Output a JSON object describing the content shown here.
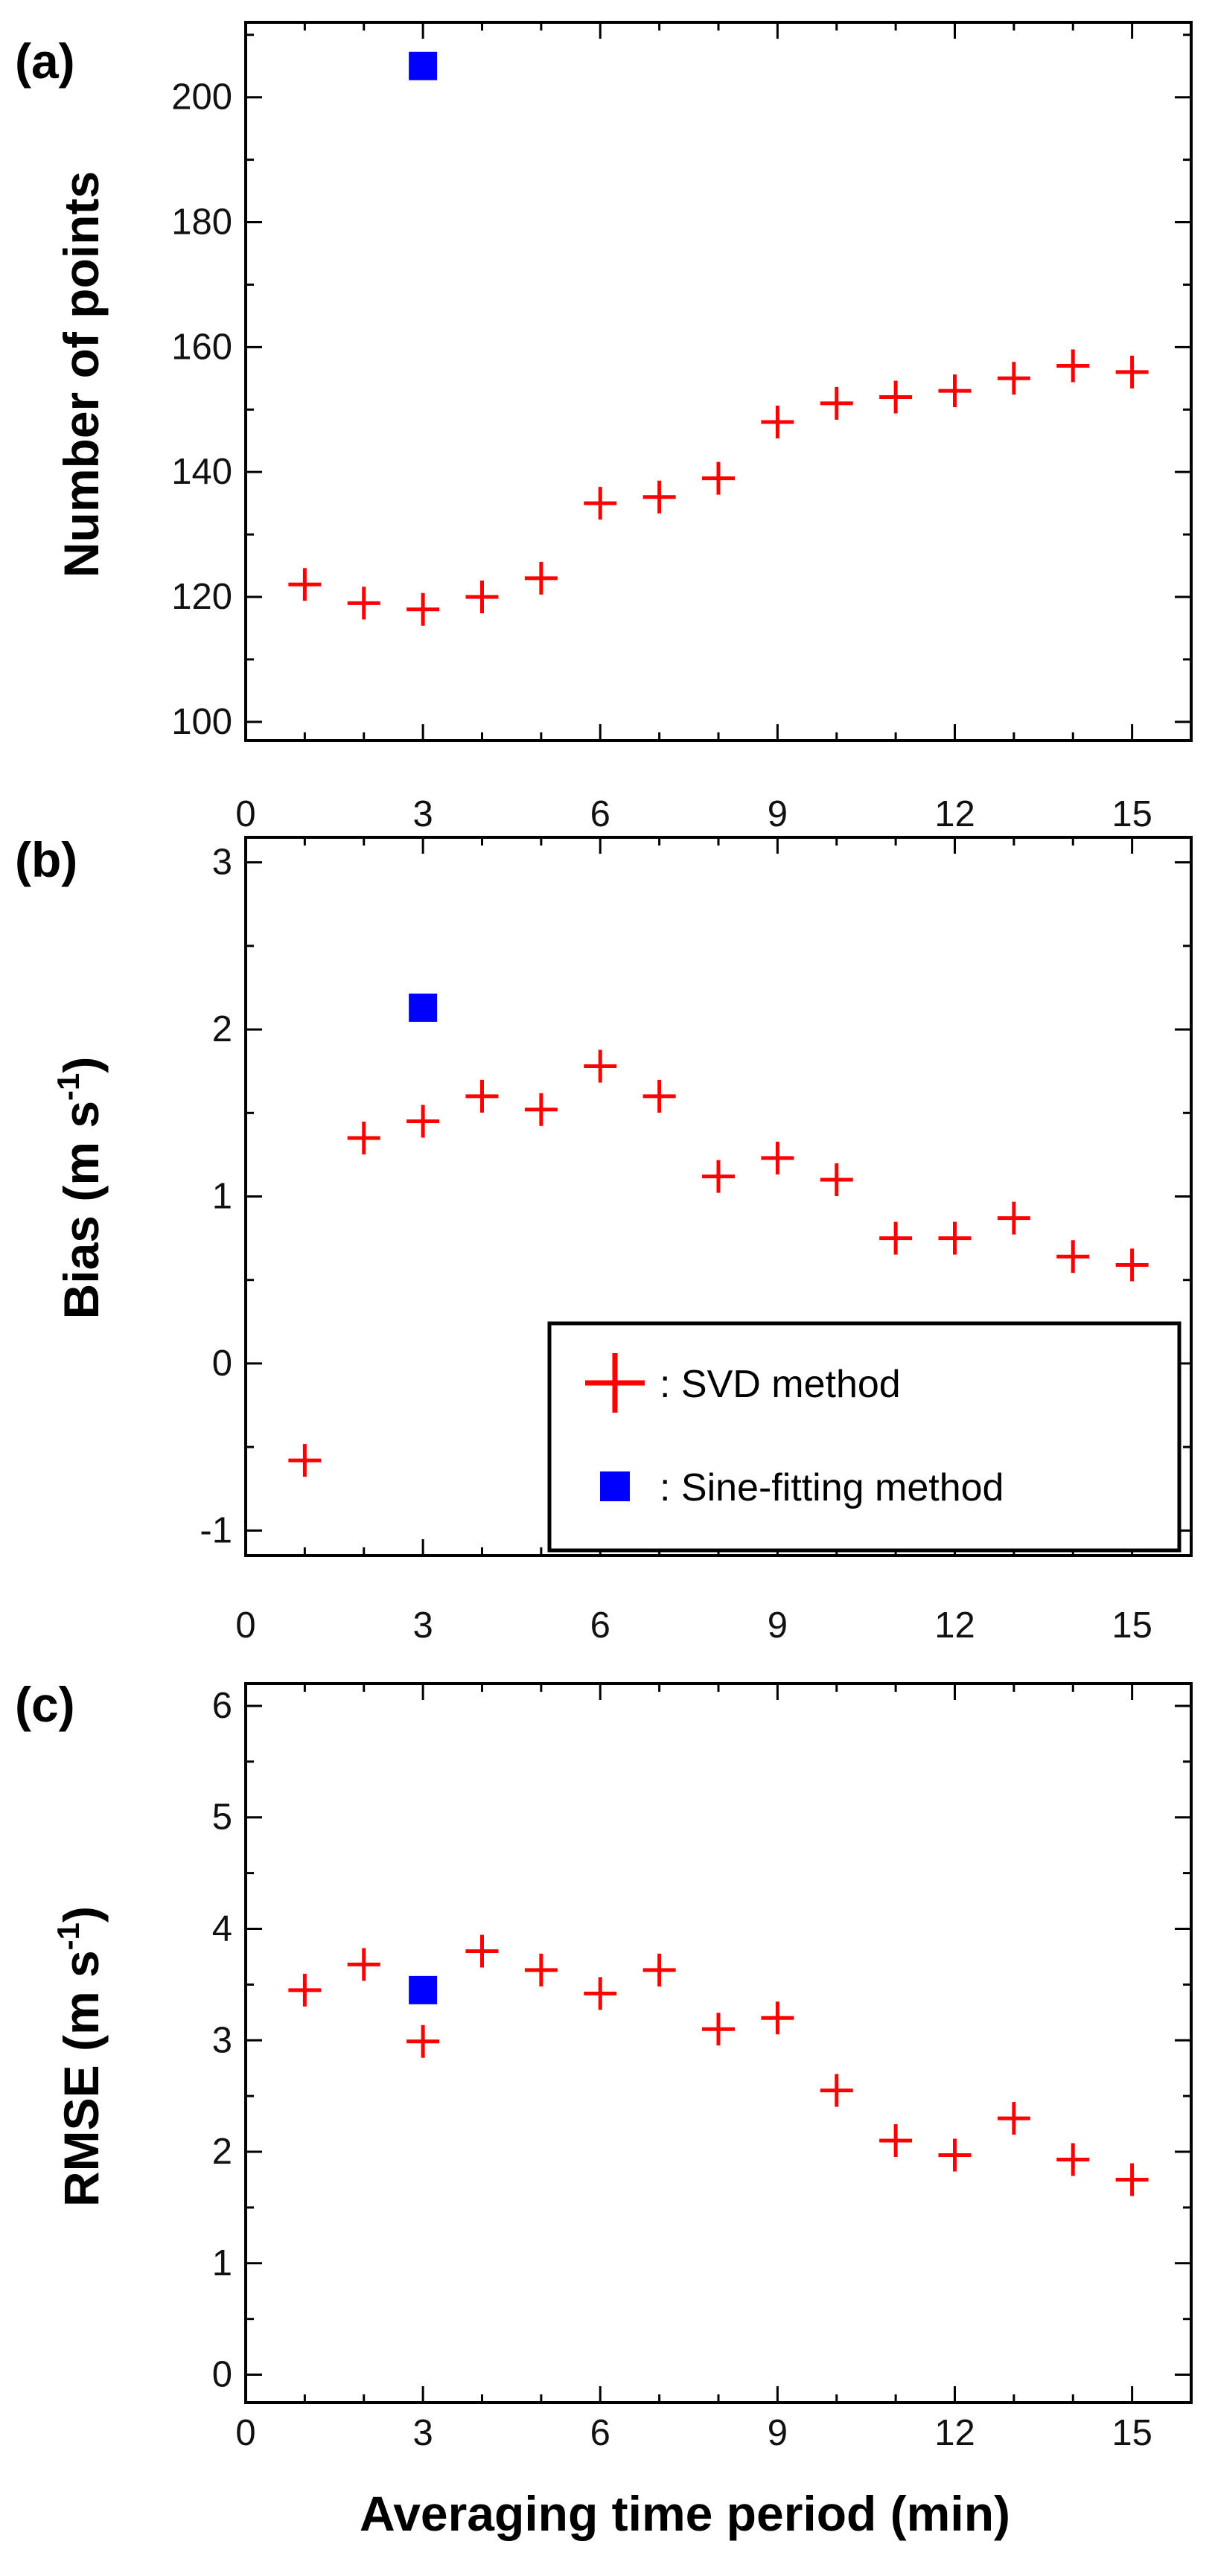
{
  "chart_data": [
    {
      "type": "scatter",
      "panel_label": "(a)",
      "ylabel": "Number of points",
      "xlim": [
        0,
        16
      ],
      "ylim": [
        97,
        212
      ],
      "x_ticks": [
        0,
        3,
        6,
        9,
        12,
        15
      ],
      "x_tick_labels": [
        "0",
        "3",
        "6",
        "9",
        "12",
        "15"
      ],
      "y_ticks": [
        100,
        120,
        140,
        160,
        180,
        200
      ],
      "y_tick_labels": [
        "100",
        "120",
        "140",
        "160",
        "180",
        "200"
      ],
      "series": [
        {
          "name": ": SVD method",
          "marker": "plus",
          "color": "#ff0000",
          "x": [
            1,
            2,
            3,
            4,
            5,
            6,
            7,
            8,
            9,
            10,
            11,
            12,
            13,
            14,
            15
          ],
          "y": [
            122,
            119,
            118,
            120,
            123,
            135,
            136,
            139,
            148,
            151,
            152,
            153,
            155,
            157,
            156
          ]
        },
        {
          "name": ": Sine-fitting method",
          "marker": "square",
          "color": "#0000ff",
          "x": [
            3
          ],
          "y": [
            205
          ]
        }
      ]
    },
    {
      "type": "scatter",
      "panel_label": "(b)",
      "ylabel": "Bias (m s",
      "ylabel_sup": "-1",
      "ylabel_end": ")",
      "xlim": [
        0,
        16
      ],
      "ylim": [
        -1.15,
        3.15
      ],
      "x_ticks": [
        0,
        3,
        6,
        9,
        12,
        15
      ],
      "x_tick_labels": [
        "0",
        "3",
        "6",
        "9",
        "12",
        "15"
      ],
      "y_ticks": [
        -1,
        0,
        1,
        2,
        3
      ],
      "y_tick_labels": [
        "-1",
        "0",
        "1",
        "2",
        "3"
      ],
      "legend": {
        "position": "lower-right",
        "entries": [
          ": SVD method",
          ": Sine-fitting method"
        ]
      },
      "series": [
        {
          "name": ": SVD method",
          "marker": "plus",
          "color": "#ff0000",
          "x": [
            1,
            2,
            3,
            4,
            5,
            6,
            7,
            8,
            9,
            10,
            11,
            12,
            13,
            14,
            15
          ],
          "y": [
            -0.58,
            1.35,
            1.45,
            1.6,
            1.52,
            1.78,
            1.6,
            1.12,
            1.23,
            1.1,
            0.75,
            0.75,
            0.87,
            0.64,
            0.59
          ]
        },
        {
          "name": ": Sine-fitting method",
          "marker": "square",
          "color": "#0000ff",
          "x": [
            3
          ],
          "y": [
            2.13
          ]
        }
      ]
    },
    {
      "type": "scatter",
      "panel_label": "(c)",
      "ylabel": "RMSE (m s",
      "ylabel_sup": "-1",
      "ylabel_end": ")",
      "xlabel": "Averaging time period (min)",
      "xlim": [
        0,
        16
      ],
      "ylim": [
        -0.25,
        6.2
      ],
      "x_ticks": [
        0,
        3,
        6,
        9,
        12,
        15
      ],
      "x_tick_labels": [
        "0",
        "3",
        "6",
        "9",
        "12",
        "15"
      ],
      "y_ticks": [
        0,
        1,
        2,
        3,
        4,
        5,
        6
      ],
      "y_tick_labels": [
        "0",
        "1",
        "2",
        "3",
        "4",
        "5",
        "6"
      ],
      "series": [
        {
          "name": ": SVD method",
          "marker": "plus",
          "color": "#ff0000",
          "x": [
            1,
            2,
            3,
            4,
            5,
            6,
            7,
            8,
            9,
            10,
            11,
            12,
            13,
            14,
            15
          ],
          "y": [
            3.45,
            3.68,
            2.99,
            3.8,
            3.63,
            3.42,
            3.63,
            3.1,
            3.2,
            2.55,
            2.1,
            1.97,
            2.3,
            1.93,
            1.75
          ]
        },
        {
          "name": ": Sine-fitting method",
          "marker": "square",
          "color": "#0000ff",
          "x": [
            3
          ],
          "y": [
            3.45
          ]
        }
      ]
    }
  ]
}
